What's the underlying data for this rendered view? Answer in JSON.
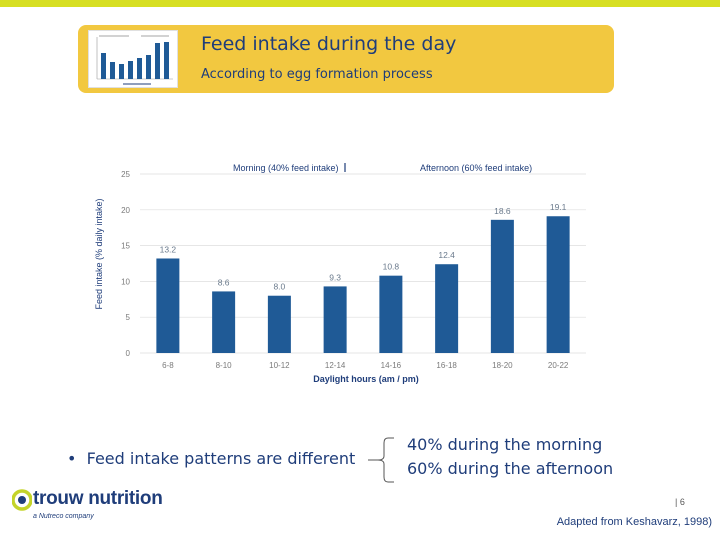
{
  "header": {
    "title": "Feed intake during the day",
    "subtitle": "According to egg formation process"
  },
  "chart_data": {
    "type": "bar",
    "categories": [
      "6-8",
      "8-10",
      "10-12",
      "12-14",
      "14-16",
      "16-18",
      "18-20",
      "20-22"
    ],
    "values": [
      13.2,
      8.6,
      8.0,
      9.3,
      10.8,
      12.4,
      18.6,
      19.1
    ],
    "value_labels": [
      "13.2",
      "8.6",
      "8.0",
      "9.3",
      "10.8",
      "12.4",
      "18.6",
      "19.1"
    ],
    "yticks": [
      0,
      5,
      10,
      15,
      20,
      25
    ],
    "ylim": [
      0,
      25
    ],
    "xlabel": "Daylight hours (am / pm)",
    "ylabel": "Feed intake (% daily intake)",
    "annotations": {
      "morning": "Morning  (40% feed intake)",
      "afternoon": "Afternoon (60% feed intake)"
    },
    "bar_color": "#1f5a96"
  },
  "bullet": "Feed intake patterns are different",
  "split": {
    "morning": "40% during  the morning",
    "afternoon": "60% during  the afternoon"
  },
  "footer": {
    "brand": "trouw nutrition",
    "tagline": "a Nutreco company",
    "page": "| 6",
    "source": "Adapted from Keshavarz, 1998)"
  },
  "colors": {
    "accent_bar": "#d7df23",
    "header_bg": "#f2c840",
    "text_blue": "#1f3d7a",
    "brand_green": "#c4d42a"
  }
}
